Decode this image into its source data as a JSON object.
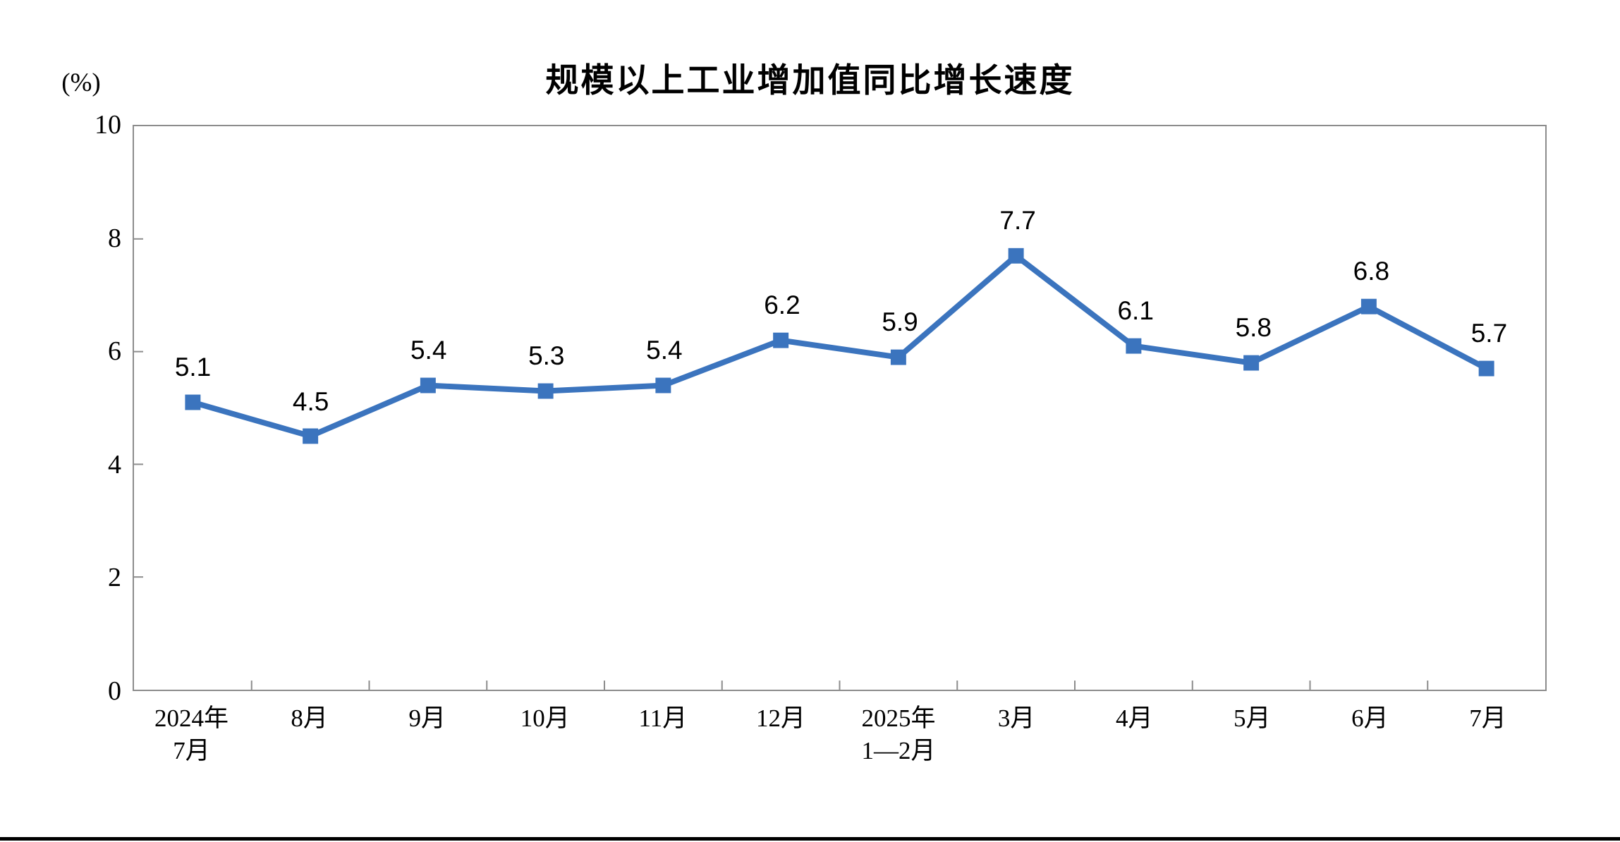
{
  "chart_data": {
    "type": "line",
    "title": "规模以上工业增加值同比增长速度",
    "unit_label": "(%)",
    "categories": [
      "2024年\n7月",
      "8月",
      "9月",
      "10月",
      "11月",
      "12月",
      "2025年\n1—2月",
      "3月",
      "4月",
      "5月",
      "6月",
      "7月"
    ],
    "series": [
      {
        "name": "规模以上工业增加值同比增长速度",
        "values": [
          5.1,
          4.5,
          5.4,
          5.3,
          5.4,
          6.2,
          5.9,
          7.7,
          6.1,
          5.8,
          6.8,
          5.7
        ]
      }
    ],
    "ylim": [
      0,
      10
    ],
    "yticks": [
      0,
      2,
      4,
      6,
      8,
      10
    ],
    "grid": false,
    "legend_position": "none",
    "marker": "square",
    "data_labels_shown": true,
    "colors": {
      "line": "#3B74BE",
      "marker": "#3B74BE",
      "axis": "#8C8C8C",
      "text": "#000000",
      "background": "#FFFFFF",
      "divider": "#000000"
    }
  }
}
